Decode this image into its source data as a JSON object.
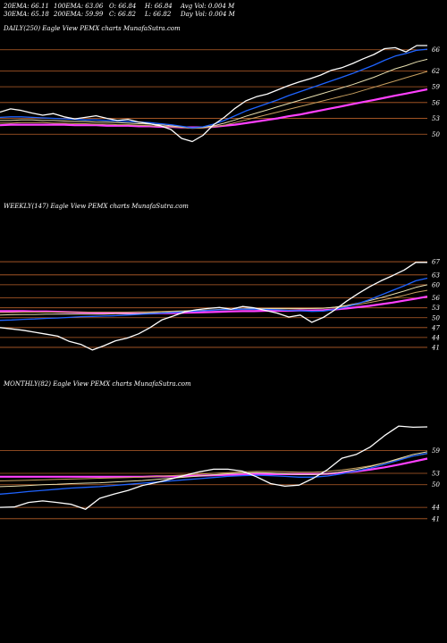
{
  "header": {
    "row1": [
      "20EMA: 66.11",
      "100EMA: 63.06",
      "O: 66.84",
      "H: 66.84",
      "Avg Vol: 0.004 M"
    ],
    "row2": [
      "30EMA: 65.18",
      "200EMA: 59.99",
      "C: 66.82",
      "L: 66.82",
      "Day Vol: 0.004 M"
    ]
  },
  "colors": {
    "price": "#ffffff",
    "ema_short": "#1e63ff",
    "ema_mid_1": "#e8e0b0",
    "ema_mid_2": "#c8a060",
    "ema_long": "#ff40ff",
    "ema_long_2": "#b06040",
    "gridline": "#b8602a",
    "background": "#000000"
  },
  "chart_data": [
    {
      "type": "line",
      "title": "DAILY(250) Eagle  View  PEMX  charts MunafaSutra.com",
      "yticks": [
        66,
        62,
        59,
        56,
        53,
        50
      ],
      "ylim": [
        47,
        69
      ],
      "series": [
        {
          "role": "price",
          "values": [
            54.2,
            54.8,
            54.5,
            54.0,
            53.6,
            53.9,
            53.3,
            52.9,
            53.2,
            53.5,
            53.0,
            52.6,
            52.8,
            52.3,
            52.0,
            51.6,
            50.9,
            49.2,
            48.6,
            49.8,
            51.8,
            53.2,
            54.9,
            56.3,
            57.1,
            57.6,
            58.4,
            59.2,
            59.9,
            60.5,
            61.2,
            62.1,
            62.6,
            63.4,
            64.3,
            65.1,
            66.2,
            66.4,
            65.6,
            66.8,
            66.8
          ]
        },
        {
          "role": "ema_short",
          "values": [
            53.2,
            53.3,
            53.3,
            53.2,
            53.1,
            53.0,
            52.9,
            52.8,
            52.7,
            52.7,
            52.6,
            52.5,
            52.4,
            52.3,
            52.2,
            52.0,
            51.8,
            51.5,
            51.2,
            51.4,
            51.9,
            52.6,
            53.5,
            54.4,
            55.1,
            55.8,
            56.5,
            57.3,
            58.0,
            58.7,
            59.4,
            60.1,
            60.8,
            61.5,
            62.3,
            63.1,
            64.0,
            64.8,
            65.3,
            65.9,
            66.1
          ]
        },
        {
          "role": "ema_mid_1",
          "values": [
            52.6,
            52.6,
            52.7,
            52.7,
            52.6,
            52.6,
            52.5,
            52.4,
            52.4,
            52.3,
            52.3,
            52.2,
            52.1,
            52.0,
            51.9,
            51.8,
            51.6,
            51.4,
            51.2,
            51.3,
            51.6,
            52.1,
            52.7,
            53.4,
            54.0,
            54.6,
            55.2,
            55.8,
            56.4,
            57.0,
            57.6,
            58.2,
            58.8,
            59.4,
            60.1,
            60.8,
            61.6,
            62.4,
            63.0,
            63.7,
            64.2
          ]
        },
        {
          "role": "ema_mid_2",
          "values": [
            52.1,
            52.1,
            52.2,
            52.2,
            52.2,
            52.1,
            52.1,
            52.0,
            52.0,
            51.9,
            51.9,
            51.8,
            51.8,
            51.7,
            51.6,
            51.5,
            51.4,
            51.3,
            51.1,
            51.2,
            51.4,
            51.7,
            52.2,
            52.7,
            53.2,
            53.7,
            54.2,
            54.7,
            55.2,
            55.7,
            56.2,
            56.7,
            57.2,
            57.7,
            58.3,
            58.9,
            59.5,
            60.1,
            60.7,
            61.3,
            61.9
          ]
        },
        {
          "role": "ema_long",
          "values": [
            51.7,
            51.8,
            51.8,
            51.8,
            51.8,
            51.8,
            51.8,
            51.7,
            51.7,
            51.7,
            51.6,
            51.6,
            51.6,
            51.5,
            51.5,
            51.4,
            51.4,
            51.3,
            51.3,
            51.3,
            51.4,
            51.6,
            51.8,
            52.1,
            52.4,
            52.7,
            53.0,
            53.4,
            53.7,
            54.1,
            54.5,
            54.9,
            55.3,
            55.7,
            56.1,
            56.5,
            56.9,
            57.3,
            57.7,
            58.1,
            58.5
          ]
        }
      ]
    },
    {
      "type": "line",
      "title": "WEEKLY(147) Eagle  View  PEMX  charts MunafaSutra.com",
      "yticks": [
        67,
        63,
        60,
        56,
        53,
        50,
        47,
        44,
        41
      ],
      "ylim": [
        38,
        70
      ],
      "series": [
        {
          "role": "price",
          "values": [
            47.0,
            46.6,
            46.2,
            45.6,
            45.0,
            44.4,
            42.8,
            41.9,
            40.2,
            41.5,
            43.0,
            43.8,
            45.1,
            47.0,
            49.3,
            50.5,
            51.8,
            52.4,
            52.8,
            53.1,
            52.6,
            53.4,
            53.0,
            52.2,
            51.4,
            50.2,
            50.8,
            48.6,
            50.1,
            52.4,
            55.0,
            57.3,
            59.4,
            61.2,
            62.8,
            64.5,
            66.8,
            66.8
          ]
        },
        {
          "role": "ema_short",
          "values": [
            49.2,
            49.3,
            49.5,
            49.6,
            49.8,
            49.9,
            50.1,
            50.3,
            50.4,
            50.5,
            50.6,
            50.8,
            51.0,
            51.2,
            51.4,
            51.6,
            51.8,
            52.0,
            52.2,
            52.4,
            52.5,
            52.6,
            52.6,
            52.5,
            52.4,
            52.2,
            52.1,
            51.9,
            52.0,
            52.5,
            53.3,
            54.3,
            55.5,
            56.9,
            58.3,
            59.7,
            61.2,
            62.0
          ]
        },
        {
          "role": "ema_mid_1",
          "values": [
            50.8,
            50.9,
            51.0,
            51.0,
            51.1,
            51.1,
            51.1,
            51.1,
            51.1,
            51.1,
            51.2,
            51.2,
            51.3,
            51.5,
            51.6,
            51.8,
            52.0,
            52.1,
            52.3,
            52.5,
            52.6,
            52.7,
            52.8,
            52.8,
            52.8,
            52.8,
            52.8,
            52.8,
            52.9,
            53.2,
            53.7,
            54.4,
            55.2,
            56.1,
            57.1,
            58.1,
            59.2,
            60.0
          ]
        },
        {
          "role": "ema_long",
          "values": [
            52.0,
            52.0,
            52.0,
            51.9,
            51.9,
            51.8,
            51.7,
            51.6,
            51.5,
            51.4,
            51.4,
            51.3,
            51.3,
            51.3,
            51.4,
            51.4,
            51.5,
            51.6,
            51.7,
            51.8,
            51.9,
            52.0,
            52.0,
            52.1,
            52.1,
            52.1,
            52.2,
            52.2,
            52.3,
            52.5,
            52.8,
            53.2,
            53.6,
            54.1,
            54.6,
            55.2,
            55.8,
            56.4
          ]
        },
        {
          "role": "ema_mid_2",
          "values": [
            51.6,
            51.6,
            51.7,
            51.7,
            51.7,
            51.7,
            51.7,
            51.7,
            51.7,
            51.7,
            51.7,
            51.7,
            51.8,
            51.8,
            51.9,
            52.0,
            52.1,
            52.2,
            52.3,
            52.4,
            52.5,
            52.6,
            52.6,
            52.7,
            52.7,
            52.7,
            52.7,
            52.8,
            52.9,
            53.1,
            53.5,
            54.0,
            54.6,
            55.3,
            56.0,
            56.8,
            57.7,
            58.3
          ]
        }
      ]
    },
    {
      "type": "line",
      "title": "MONTHLY(82) Eagle  View  PEMX  charts MunafaSutra.com",
      "yticks": [
        59,
        53,
        50,
        44,
        41
      ],
      "ylim": [
        36,
        66
      ],
      "series": [
        {
          "role": "price",
          "values": [
            44.0,
            44.1,
            45.3,
            45.7,
            45.3,
            44.8,
            43.5,
            46.4,
            47.5,
            48.5,
            49.8,
            50.6,
            51.5,
            52.5,
            53.4,
            54.1,
            54.1,
            53.6,
            52.1,
            50.3,
            49.6,
            49.9,
            51.7,
            54.0,
            57.0,
            58.0,
            60.0,
            63.0,
            65.5,
            65.2,
            65.3
          ]
        },
        {
          "role": "ema_short",
          "values": [
            47.5,
            47.8,
            48.2,
            48.5,
            48.8,
            49.1,
            49.3,
            49.5,
            49.8,
            50.1,
            50.4,
            50.7,
            51.0,
            51.3,
            51.6,
            51.9,
            52.2,
            52.4,
            52.5,
            52.4,
            52.2,
            52.0,
            52.0,
            52.3,
            52.9,
            53.6,
            54.4,
            55.4,
            56.5,
            57.6,
            58.3
          ]
        },
        {
          "role": "ema_mid_1",
          "values": [
            49.5,
            49.6,
            49.8,
            50.0,
            50.1,
            50.3,
            50.4,
            50.5,
            50.7,
            50.9,
            51.1,
            51.4,
            51.7,
            52.0,
            52.3,
            52.6,
            52.9,
            53.1,
            53.2,
            53.1,
            52.9,
            52.7,
            52.7,
            52.9,
            53.4,
            54.0,
            54.8,
            55.8,
            56.9,
            58.0,
            58.7
          ]
        },
        {
          "role": "ema_long",
          "values": [
            52.1,
            52.1,
            52.1,
            52.1,
            52.1,
            52.1,
            52.1,
            52.1,
            52.1,
            52.1,
            52.1,
            52.2,
            52.2,
            52.3,
            52.4,
            52.5,
            52.6,
            52.7,
            52.8,
            52.8,
            52.8,
            52.8,
            52.8,
            52.9,
            53.2,
            53.5,
            54.0,
            54.6,
            55.3,
            56.1,
            56.9
          ]
        },
        {
          "role": "ema_mid_2",
          "values": [
            51.0,
            51.1,
            51.2,
            51.3,
            51.4,
            51.5,
            51.6,
            51.7,
            51.8,
            51.9,
            52.0,
            52.2,
            52.4,
            52.6,
            52.8,
            53.0,
            53.2,
            53.4,
            53.5,
            53.5,
            53.4,
            53.3,
            53.3,
            53.5,
            53.9,
            54.4,
            55.0,
            55.8,
            56.7,
            57.6,
            58.2
          ]
        }
      ]
    }
  ]
}
